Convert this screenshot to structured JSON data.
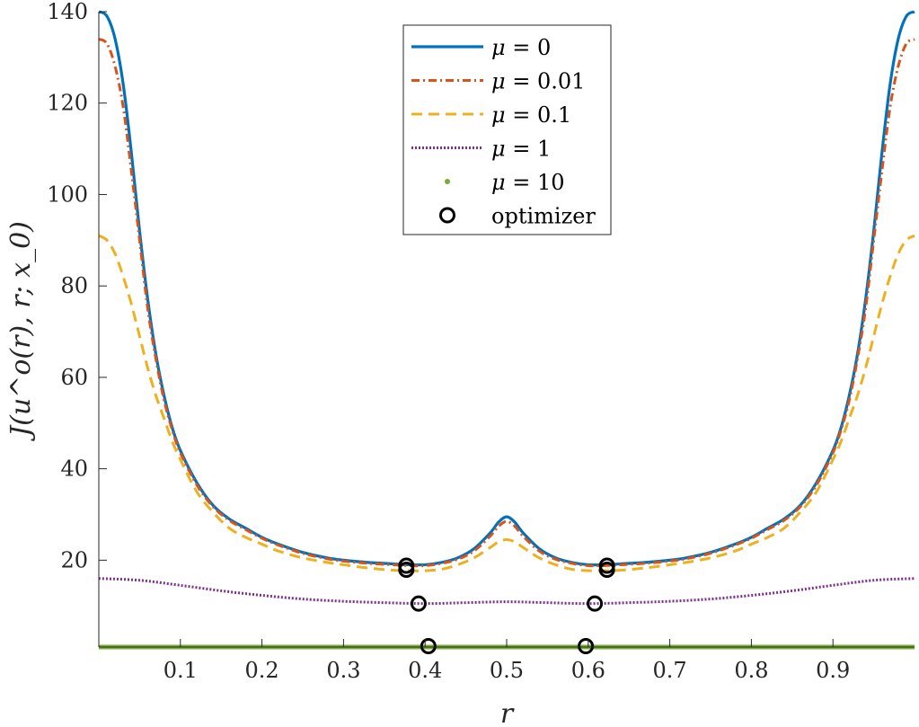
{
  "chart_data": {
    "type": "line",
    "title": "",
    "xlabel": "r",
    "ylabel": "J(u^o(r), r; x_0)",
    "xlim": [
      0,
      1
    ],
    "ylim": [
      1,
      140
    ],
    "xticks": [
      0.1,
      0.2,
      0.3,
      0.4,
      0.5,
      0.6,
      0.7,
      0.8,
      0.9
    ],
    "xtick_labels": [
      "0.1",
      "0.2",
      "0.3",
      "0.4",
      "0.5",
      "0.6",
      "0.7",
      "0.8",
      "0.9"
    ],
    "yticks": [
      20,
      40,
      60,
      80,
      100,
      120,
      140
    ],
    "ytick_labels": [
      "20",
      "40",
      "60",
      "80",
      "100",
      "120",
      "140"
    ],
    "grid": false,
    "legend_position": "top-center",
    "series": [
      {
        "name": "μ = 0",
        "legend_value": "0",
        "style": "solid",
        "color": "#0072BD",
        "x": [
          0,
          0.01,
          0.02,
          0.03,
          0.04,
          0.05,
          0.06,
          0.07,
          0.08,
          0.09,
          0.1,
          0.12,
          0.14,
          0.16,
          0.18,
          0.2,
          0.22,
          0.25,
          0.28,
          0.3,
          0.33,
          0.36,
          0.38,
          0.4,
          0.42,
          0.44,
          0.46,
          0.48,
          0.49,
          0.5,
          0.51,
          0.52,
          0.54,
          0.56,
          0.58,
          0.6,
          0.62,
          0.64,
          0.67,
          0.7,
          0.72,
          0.75,
          0.78,
          0.8,
          0.82,
          0.84,
          0.86,
          0.88,
          0.9,
          0.91,
          0.92,
          0.93,
          0.94,
          0.95,
          0.96,
          0.97,
          0.98,
          0.99,
          1
        ],
        "y": [
          140,
          139,
          134,
          124,
          109,
          92,
          77,
          65,
          56,
          49,
          44,
          37,
          32,
          29,
          27,
          25,
          23.5,
          21.7,
          20.5,
          20,
          19.5,
          19.2,
          19,
          19,
          19.5,
          20.5,
          22.5,
          26,
          28.3,
          29.5,
          28.3,
          26,
          22.5,
          20.5,
          19.5,
          19,
          19,
          19.2,
          19.5,
          20,
          20.5,
          21.7,
          23.5,
          25,
          27,
          29,
          32,
          37,
          44,
          49,
          56,
          65,
          77,
          92,
          109,
          124,
          134,
          139,
          140
        ]
      },
      {
        "name": "μ = 0.01",
        "legend_value": "0.01",
        "style": "dashdot",
        "color": "#D95319",
        "x": [
          0,
          0.01,
          0.02,
          0.03,
          0.04,
          0.05,
          0.06,
          0.07,
          0.08,
          0.09,
          0.1,
          0.12,
          0.14,
          0.16,
          0.18,
          0.2,
          0.22,
          0.25,
          0.28,
          0.3,
          0.33,
          0.36,
          0.38,
          0.4,
          0.42,
          0.44,
          0.46,
          0.48,
          0.49,
          0.5,
          0.51,
          0.52,
          0.54,
          0.56,
          0.58,
          0.6,
          0.62,
          0.64,
          0.67,
          0.7,
          0.72,
          0.75,
          0.78,
          0.8,
          0.82,
          0.84,
          0.86,
          0.88,
          0.9,
          0.91,
          0.92,
          0.93,
          0.94,
          0.95,
          0.96,
          0.97,
          0.98,
          0.99,
          1
        ],
        "y": [
          134,
          133,
          128,
          119,
          105,
          90,
          75,
          64,
          55,
          48.5,
          43.5,
          36.5,
          31.7,
          28.7,
          26.7,
          24.8,
          23.3,
          21.5,
          20.3,
          19.8,
          19.3,
          19,
          18.8,
          18.8,
          19.3,
          20.2,
          22,
          25.3,
          27.4,
          28.5,
          27.4,
          25.3,
          22,
          20.2,
          19.3,
          18.8,
          18.8,
          19,
          19.3,
          19.8,
          20.3,
          21.5,
          23.3,
          24.8,
          26.7,
          28.7,
          31.7,
          36.5,
          43.5,
          48.5,
          55,
          64,
          75,
          90,
          105,
          119,
          128,
          133,
          134
        ]
      },
      {
        "name": "μ = 0.1",
        "legend_value": "0.1",
        "style": "dashed",
        "color": "#EDB120",
        "x": [
          0,
          0.01,
          0.02,
          0.03,
          0.04,
          0.05,
          0.06,
          0.07,
          0.08,
          0.09,
          0.1,
          0.12,
          0.14,
          0.16,
          0.18,
          0.2,
          0.22,
          0.25,
          0.28,
          0.3,
          0.33,
          0.36,
          0.38,
          0.4,
          0.42,
          0.44,
          0.46,
          0.48,
          0.49,
          0.5,
          0.51,
          0.52,
          0.54,
          0.56,
          0.58,
          0.6,
          0.62,
          0.64,
          0.67,
          0.7,
          0.72,
          0.75,
          0.78,
          0.8,
          0.82,
          0.84,
          0.86,
          0.88,
          0.9,
          0.91,
          0.92,
          0.93,
          0.94,
          0.95,
          0.96,
          0.97,
          0.98,
          0.99,
          1
        ],
        "y": [
          91,
          90,
          87,
          82,
          76,
          69,
          62,
          56,
          51,
          46,
          42,
          35,
          30.5,
          27,
          25,
          23.5,
          22,
          20.5,
          19.5,
          19,
          18.3,
          17.8,
          17.7,
          17.7,
          18,
          19,
          20.5,
          22.8,
          24,
          24.5,
          24,
          22.8,
          20.5,
          19,
          18,
          17.7,
          17.7,
          17.8,
          18.3,
          19,
          19.5,
          20.5,
          22,
          23.5,
          25,
          27,
          30.5,
          35,
          42,
          46,
          51,
          56,
          62,
          69,
          76,
          82,
          87,
          90,
          91
        ]
      },
      {
        "name": "μ = 1",
        "legend_value": "1",
        "style": "dotted",
        "color": "#7E2F8E",
        "x": [
          0,
          0.05,
          0.1,
          0.15,
          0.2,
          0.25,
          0.3,
          0.35,
          0.4,
          0.45,
          0.5,
          0.55,
          0.6,
          0.65,
          0.7,
          0.75,
          0.8,
          0.85,
          0.9,
          0.95,
          1
        ],
        "y": [
          16,
          15.6,
          14.5,
          13.3,
          12.3,
          11.5,
          11,
          10.7,
          10.5,
          10.7,
          10.9,
          10.7,
          10.5,
          10.7,
          11,
          11.5,
          12.3,
          13.3,
          14.5,
          15.6,
          16
        ]
      },
      {
        "name": "μ = 10",
        "legend_value": "10",
        "style": "points",
        "color": "#77AC30",
        "x": [
          0,
          1
        ],
        "y": [
          1,
          1
        ]
      }
    ],
    "optimizer": {
      "name": "optimizer",
      "color": "#000000",
      "points": [
        {
          "x": 0.377,
          "y": 18.8
        },
        {
          "x": 0.377,
          "y": 17.9
        },
        {
          "x": 0.623,
          "y": 18.8
        },
        {
          "x": 0.623,
          "y": 17.9
        },
        {
          "x": 0.392,
          "y": 10.5
        },
        {
          "x": 0.608,
          "y": 10.5
        },
        {
          "x": 0.404,
          "y": 1.2
        },
        {
          "x": 0.597,
          "y": 1.2
        }
      ]
    }
  }
}
